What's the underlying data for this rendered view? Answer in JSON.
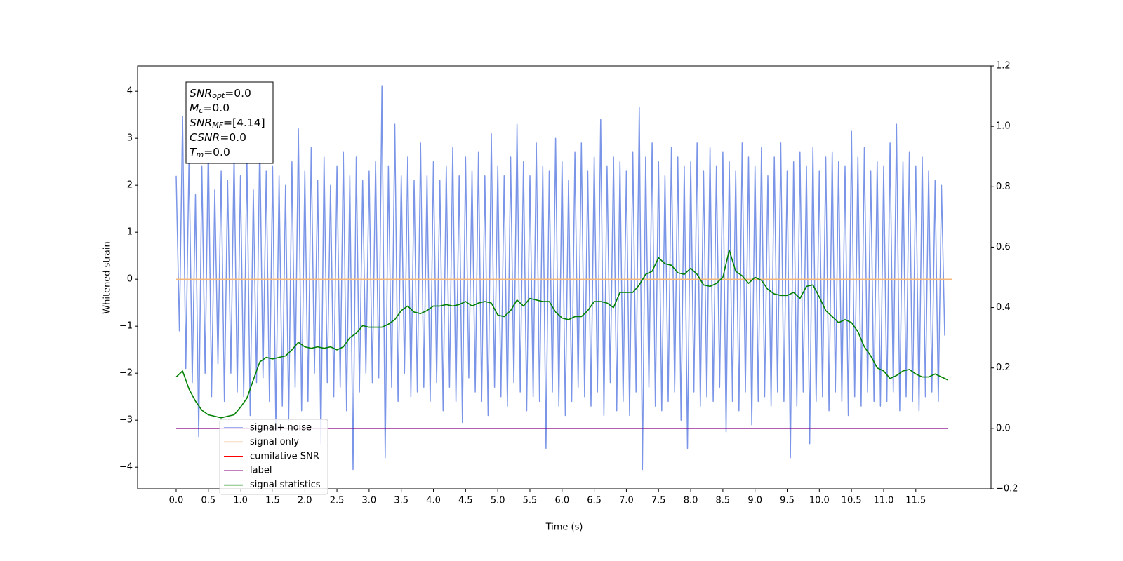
{
  "chart_data": {
    "type": "line",
    "xlabel": "Time (s)",
    "ylabel": "Whitened strain",
    "xlim": [
      -0.6,
      12.67
    ],
    "ylim": [
      -4.46,
      4.54
    ],
    "y2lim": [
      -0.2,
      1.2
    ],
    "xticks": [
      {
        "value": 0,
        "label": "0.0"
      },
      0.5,
      {
        "value": 1,
        "label": "1.0"
      },
      1.5,
      {
        "value": 2,
        "label": "2.0"
      },
      2.5,
      {
        "value": 3,
        "label": "3.0"
      },
      3.5,
      {
        "value": 4,
        "label": "4.0"
      },
      4.5,
      {
        "value": 5,
        "label": "5.0"
      },
      5.5,
      {
        "value": 6,
        "label": "6.0"
      },
      6.5,
      {
        "value": 7,
        "label": "7.0"
      },
      7.5,
      {
        "value": 8,
        "label": "8.0"
      },
      8.5,
      {
        "value": 9,
        "label": "9.0"
      },
      9.5,
      {
        "value": 10,
        "label": "10.0"
      },
      10.5,
      {
        "value": 11,
        "label": "11.0"
      },
      11.5
    ],
    "yticks": [
      {
        "value": -4,
        "label": "−4"
      },
      {
        "value": -3,
        "label": "−3"
      },
      {
        "value": -2,
        "label": "−2"
      },
      {
        "value": -1,
        "label": "−1"
      },
      0,
      1,
      2,
      3,
      4
    ],
    "y2ticks": [
      {
        "value": -0.2,
        "label": "−0.2"
      },
      {
        "value": 0,
        "label": "0.0"
      },
      0.2,
      0.4,
      0.6,
      0.8,
      {
        "value": 1,
        "label": "1.0"
      },
      1.2
    ],
    "legend_loc": "lower left",
    "annotation": [
      {
        "text": "SNR",
        "sub": "opt",
        "rest": "=0.0"
      },
      {
        "text": "M",
        "sub": "c",
        "rest": "=0.0"
      },
      {
        "text": "SNR",
        "sub": "MF",
        "rest": "=[4.14]"
      },
      {
        "text": "CSNR",
        "rest": "=0.0"
      },
      {
        "text": "T",
        "sub": "m",
        "rest": "=0.0"
      }
    ],
    "series": [
      {
        "name": "signal+ noise",
        "color": "#7a95e8",
        "axis": "y",
        "x": [
          0,
          0.05,
          0.1,
          0.15,
          0.2,
          0.25,
          0.3,
          0.35,
          0.4,
          0.45,
          0.5,
          0.55,
          0.6,
          0.65,
          0.7,
          0.75,
          0.8,
          0.85,
          0.9,
          0.95,
          1,
          1.05,
          1.1,
          1.15,
          1.2,
          1.25,
          1.3,
          1.35,
          1.4,
          1.45,
          1.5,
          1.55,
          1.6,
          1.65,
          1.7,
          1.75,
          1.8,
          1.85,
          1.9,
          1.95,
          2,
          2.05,
          2.1,
          2.15,
          2.2,
          2.25,
          2.3,
          2.35,
          2.4,
          2.45,
          2.5,
          2.55,
          2.6,
          2.65,
          2.7,
          2.75,
          2.8,
          2.85,
          2.9,
          2.95,
          3,
          3.05,
          3.1,
          3.15,
          3.2,
          3.25,
          3.3,
          3.35,
          3.4,
          3.45,
          3.5,
          3.55,
          3.6,
          3.65,
          3.7,
          3.75,
          3.8,
          3.85,
          3.9,
          3.95,
          4,
          4.05,
          4.1,
          4.15,
          4.2,
          4.25,
          4.3,
          4.35,
          4.4,
          4.45,
          4.5,
          4.55,
          4.6,
          4.65,
          4.7,
          4.75,
          4.8,
          4.85,
          4.9,
          4.95,
          5,
          5.05,
          5.1,
          5.15,
          5.2,
          5.25,
          5.3,
          5.35,
          5.4,
          5.45,
          5.5,
          5.55,
          5.6,
          5.65,
          5.7,
          5.75,
          5.8,
          5.85,
          5.9,
          5.95,
          6,
          6.05,
          6.1,
          6.15,
          6.2,
          6.25,
          6.3,
          6.35,
          6.4,
          6.45,
          6.5,
          6.55,
          6.6,
          6.65,
          6.7,
          6.75,
          6.8,
          6.85,
          6.9,
          6.95,
          7,
          7.05,
          7.1,
          7.15,
          7.2,
          7.25,
          7.3,
          7.35,
          7.4,
          7.45,
          7.5,
          7.55,
          7.6,
          7.65,
          7.7,
          7.75,
          7.8,
          7.85,
          7.9,
          7.95,
          8,
          8.05,
          8.1,
          8.15,
          8.2,
          8.25,
          8.3,
          8.35,
          8.4,
          8.45,
          8.5,
          8.55,
          8.6,
          8.65,
          8.7,
          8.75,
          8.8,
          8.85,
          8.9,
          8.95,
          9,
          9.05,
          9.1,
          9.15,
          9.2,
          9.25,
          9.3,
          9.35,
          9.4,
          9.45,
          9.5,
          9.55,
          9.6,
          9.65,
          9.7,
          9.75,
          9.8,
          9.85,
          9.9,
          9.95,
          10,
          10.05,
          10.1,
          10.15,
          10.2,
          10.25,
          10.3,
          10.35,
          10.4,
          10.45,
          10.5,
          10.55,
          10.6,
          10.65,
          10.7,
          10.75,
          10.8,
          10.85,
          10.9,
          10.95,
          11,
          11.05,
          11.1,
          11.15,
          11.2,
          11.25,
          11.3,
          11.35,
          11.4,
          11.45,
          11.5,
          11.55,
          11.6,
          11.65,
          11.7,
          11.75,
          11.8,
          11.85,
          11.9,
          11.95
        ],
        "values": [
          2.2,
          -1.1,
          3.47,
          -1.9,
          2.6,
          -2.2,
          1.8,
          -3.35,
          2.4,
          -2.0,
          2.9,
          -2.5,
          1.9,
          -1.8,
          2.3,
          -2.6,
          2.1,
          -2.0,
          2.7,
          -2.4,
          2.2,
          -2.5,
          2.6,
          -2.9,
          1.9,
          -2.2,
          3.0,
          -2.1,
          2.3,
          -2.6,
          2.4,
          -3.15,
          2.2,
          -2.7,
          2.0,
          -3.0,
          2.5,
          -2.3,
          3.2,
          -2.8,
          2.3,
          -2.6,
          2.8,
          -2.0,
          2.1,
          -3.5,
          2.6,
          -2.2,
          2.0,
          -2.5,
          2.4,
          -2.3,
          2.7,
          -2.8,
          2.2,
          -4.05,
          2.6,
          -2.4,
          2.1,
          -2.0,
          2.3,
          -2.2,
          2.5,
          -2.1,
          4.12,
          -3.8,
          2.4,
          -2.3,
          3.3,
          -2.6,
          2.2,
          -2.0,
          2.6,
          -2.5,
          2.1,
          -2.4,
          2.9,
          -2.3,
          2.2,
          -2.6,
          2.5,
          -2.2,
          2.1,
          -2.8,
          2.4,
          -2.3,
          2.8,
          -2.6,
          2.2,
          -3.05,
          2.6,
          -2.1,
          2.3,
          -2.4,
          2.7,
          -2.6,
          2.2,
          -2.9,
          3.1,
          -2.3,
          2.4,
          -2.5,
          2.2,
          -2.7,
          2.6,
          -2.2,
          3.3,
          -2.4,
          2.5,
          -2.8,
          2.2,
          -2.5,
          2.9,
          -2.6,
          2.4,
          -3.6,
          2.3,
          -2.4,
          3.0,
          -2.7,
          2.5,
          -2.9,
          2.1,
          -2.6,
          2.7,
          -2.3,
          2.9,
          -2.5,
          2.3,
          -2.7,
          2.6,
          -2.4,
          3.4,
          -2.9,
          2.4,
          -2.2,
          2.6,
          -2.8,
          2.5,
          -2.6,
          2.3,
          -2.9,
          2.7,
          -2.4,
          3.66,
          -4.05,
          2.6,
          -2.3,
          2.9,
          -2.7,
          2.5,
          -2.8,
          2.2,
          -2.6,
          2.8,
          -2.4,
          2.6,
          -3.0,
          2.4,
          -3.6,
          2.5,
          -2.4,
          2.9,
          -2.7,
          2.3,
          -2.5,
          2.8,
          -2.6,
          2.4,
          -2.3,
          2.7,
          -3.25,
          2.5,
          -2.6,
          2.3,
          -2.8,
          2.9,
          -2.4,
          2.6,
          -3.1,
          2.4,
          -2.6,
          2.8,
          -2.5,
          2.2,
          -2.7,
          2.6,
          -2.4,
          2.9,
          -2.6,
          2.3,
          -3.8,
          2.5,
          -2.7,
          2.7,
          -2.4,
          2.4,
          -3.5,
          2.8,
          -2.6,
          2.3,
          -2.5,
          2.6,
          -2.8,
          2.7,
          -2.4,
          2.5,
          -2.6,
          2.4,
          -2.9,
          3.15,
          -2.5,
          2.6,
          -2.7,
          2.8,
          -2.4,
          2.3,
          -2.6,
          2.5,
          -2.7,
          2.4,
          -2.6,
          2.9,
          -2.4,
          3.3,
          -2.8,
          2.5,
          -2.5,
          2.7,
          -2.6,
          2.4,
          -2.8,
          2.6,
          -2.5,
          2.3,
          -2.4,
          2.1,
          -2.6,
          2.0,
          -1.2
        ]
      },
      {
        "name": "signal only",
        "color": "#f5b87a",
        "axis": "y",
        "x": [
          0,
          12.06
        ],
        "values": [
          0,
          0
        ]
      },
      {
        "name": "cumilative SNR",
        "color": "#ff0000",
        "axis": "y2",
        "x": [],
        "values": []
      },
      {
        "name": "label",
        "color": "#800080",
        "axis": "y2",
        "x": [
          0,
          12.0
        ],
        "values": [
          0,
          0
        ]
      },
      {
        "name": "signal statistics",
        "color": "#008000",
        "axis": "y2",
        "x": [
          0,
          0.1,
          0.2,
          0.3,
          0.4,
          0.5,
          0.6,
          0.7,
          0.8,
          0.9,
          1,
          1.1,
          1.2,
          1.3,
          1.4,
          1.5,
          1.6,
          1.7,
          1.8,
          1.9,
          2,
          2.1,
          2.2,
          2.3,
          2.4,
          2.5,
          2.6,
          2.7,
          2.8,
          2.9,
          3,
          3.1,
          3.2,
          3.3,
          3.4,
          3.5,
          3.6,
          3.7,
          3.8,
          3.9,
          4,
          4.1,
          4.2,
          4.3,
          4.4,
          4.5,
          4.6,
          4.7,
          4.8,
          4.9,
          5,
          5.1,
          5.2,
          5.3,
          5.4,
          5.5,
          5.6,
          5.7,
          5.8,
          5.9,
          6,
          6.1,
          6.2,
          6.3,
          6.4,
          6.5,
          6.6,
          6.7,
          6.8,
          6.9,
          7,
          7.1,
          7.2,
          7.3,
          7.4,
          7.5,
          7.6,
          7.7,
          7.8,
          7.9,
          8,
          8.1,
          8.2,
          8.3,
          8.4,
          8.5,
          8.6,
          8.7,
          8.8,
          8.9,
          9,
          9.1,
          9.2,
          9.3,
          9.4,
          9.5,
          9.6,
          9.7,
          9.8,
          9.9,
          10,
          10.1,
          10.2,
          10.3,
          10.4,
          10.5,
          10.6,
          10.7,
          10.8,
          10.9,
          11,
          11.1,
          11.2,
          11.3,
          11.4,
          11.5,
          11.6,
          11.7,
          11.8,
          11.9,
          12
        ],
        "values": [
          0.17,
          0.19,
          0.13,
          0.09,
          0.06,
          0.045,
          0.04,
          0.035,
          0.04,
          0.045,
          0.07,
          0.1,
          0.16,
          0.22,
          0.235,
          0.23,
          0.235,
          0.24,
          0.26,
          0.285,
          0.27,
          0.265,
          0.27,
          0.265,
          0.27,
          0.26,
          0.27,
          0.3,
          0.315,
          0.34,
          0.335,
          0.335,
          0.335,
          0.345,
          0.36,
          0.39,
          0.405,
          0.385,
          0.38,
          0.39,
          0.405,
          0.405,
          0.41,
          0.405,
          0.41,
          0.42,
          0.405,
          0.415,
          0.42,
          0.415,
          0.375,
          0.37,
          0.39,
          0.425,
          0.405,
          0.43,
          0.425,
          0.42,
          0.42,
          0.385,
          0.365,
          0.36,
          0.37,
          0.37,
          0.39,
          0.42,
          0.42,
          0.415,
          0.4,
          0.45,
          0.45,
          0.45,
          0.475,
          0.51,
          0.52,
          0.565,
          0.545,
          0.54,
          0.515,
          0.51,
          0.53,
          0.51,
          0.475,
          0.47,
          0.48,
          0.5,
          0.59,
          0.52,
          0.505,
          0.48,
          0.5,
          0.49,
          0.46,
          0.445,
          0.44,
          0.44,
          0.45,
          0.43,
          0.47,
          0.475,
          0.435,
          0.39,
          0.37,
          0.35,
          0.36,
          0.35,
          0.32,
          0.27,
          0.24,
          0.2,
          0.19,
          0.165,
          0.175,
          0.19,
          0.195,
          0.18,
          0.17,
          0.17,
          0.18,
          0.17,
          0.16
        ]
      }
    ]
  }
}
